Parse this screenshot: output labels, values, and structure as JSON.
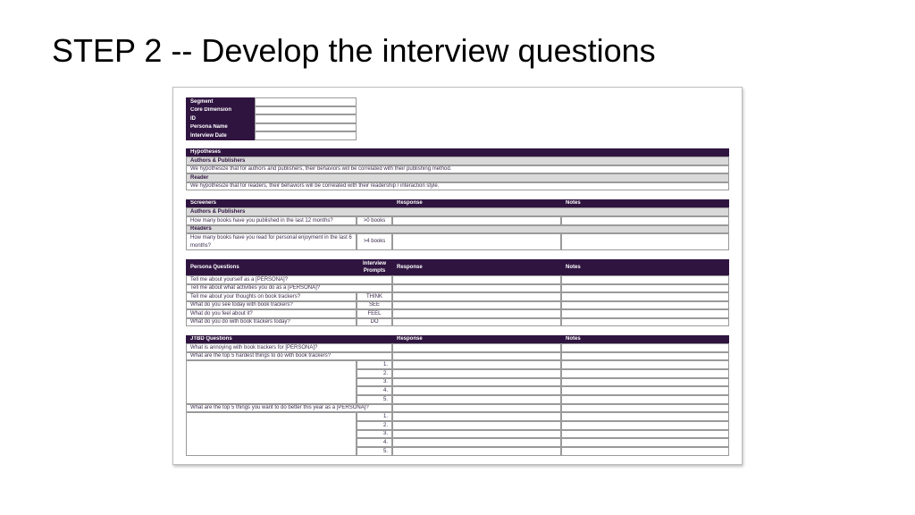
{
  "slide": {
    "title": "STEP 2 -- Develop the interview questions"
  },
  "info": {
    "labels": [
      "Segment",
      "Core Dimension",
      "ID",
      "Persona Name",
      "Interview Date"
    ]
  },
  "hypotheses": {
    "header": "Hypotheses",
    "groups": [
      {
        "label": "Authors & Publishers",
        "text": "We hypothesize that for authors and publishers, their behaviors will be correlated with their publishing method."
      },
      {
        "label": "Reader",
        "text": "We hypothesize that for readers, their behaviors will be correlated with their readership / interaction style."
      }
    ]
  },
  "screeners": {
    "header": "Screeners",
    "response": "Response",
    "notes": "Notes",
    "groups": [
      {
        "label": "Authors & Publishers",
        "question": "How many books have you published in the last 12 months?",
        "criteria": ">0 books"
      },
      {
        "label": "Readers",
        "question": "How many books have you read for personal enjoyment in the last 6 months?",
        "criteria": ">4 books"
      }
    ]
  },
  "persona": {
    "header": "Persona Questions",
    "prompts": "Interview Prompts",
    "response": "Response",
    "notes": "Notes",
    "rows": [
      {
        "q": "Tell me about yourself as a [PERSONA]?",
        "p": ""
      },
      {
        "q": "Tell me about what activities you do as a [PERSONA]?",
        "p": ""
      },
      {
        "q": "Tell me about your thoughts on book trackers?",
        "p": "THINK"
      },
      {
        "q": "What do you see today with book trackers?",
        "p": "SEE"
      },
      {
        "q": "What do you feel about it?",
        "p": "FEEL"
      },
      {
        "q": "What do you do with book trackers today?",
        "p": "DO"
      }
    ]
  },
  "jtbd": {
    "header": "JTBD Questions",
    "response": "Response",
    "notes": "Notes",
    "q1": "What is annoying with book trackers for [PERSONA]?",
    "q2": "What are the top 5 hardest things to do with book trackers?",
    "q3": "What are the top 5 things you want to do better this year as a [PERSONA]?",
    "numbers": [
      "1.",
      "2.",
      "3.",
      "4.",
      "5."
    ]
  }
}
